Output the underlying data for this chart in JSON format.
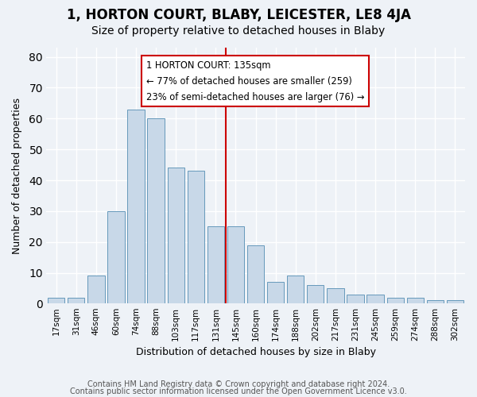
{
  "title": "1, HORTON COURT, BLABY, LEICESTER, LE8 4JA",
  "subtitle": "Size of property relative to detached houses in Blaby",
  "xlabel": "Distribution of detached houses by size in Blaby",
  "ylabel": "Number of detached properties",
  "bar_labels": [
    "17sqm",
    "31sqm",
    "46sqm",
    "60sqm",
    "74sqm",
    "88sqm",
    "103sqm",
    "117sqm",
    "131sqm",
    "145sqm",
    "160sqm",
    "174sqm",
    "188sqm",
    "202sqm",
    "217sqm",
    "231sqm",
    "245sqm",
    "259sqm",
    "274sqm",
    "288sqm",
    "302sqm"
  ],
  "bar_values": [
    2,
    2,
    9,
    30,
    63,
    60,
    44,
    43,
    25,
    25,
    19,
    7,
    9,
    6,
    5,
    3,
    3,
    2,
    2,
    1,
    1
  ],
  "bar_color": "#c8d8e8",
  "bar_edge_color": "#6699bb",
  "vline_color": "#cc0000",
  "vline_x": 8.5,
  "annotation_title": "1 HORTON COURT: 135sqm",
  "annotation_line1": "← 77% of detached houses are smaller (259)",
  "annotation_line2": "23% of semi-detached houses are larger (76) →",
  "annotation_box_color": "#ffffff",
  "annotation_border_color": "#cc0000",
  "ylim": [
    0,
    83
  ],
  "yticks": [
    0,
    10,
    20,
    30,
    40,
    50,
    60,
    70,
    80
  ],
  "footer1": "Contains HM Land Registry data © Crown copyright and database right 2024.",
  "footer2": "Contains public sector information licensed under the Open Government Licence v3.0.",
  "background_color": "#eef2f7",
  "grid_color": "#ffffff",
  "title_fontsize": 12,
  "subtitle_fontsize": 10,
  "axis_label_fontsize": 9,
  "tick_fontsize": 7.5,
  "footer_fontsize": 7.0
}
